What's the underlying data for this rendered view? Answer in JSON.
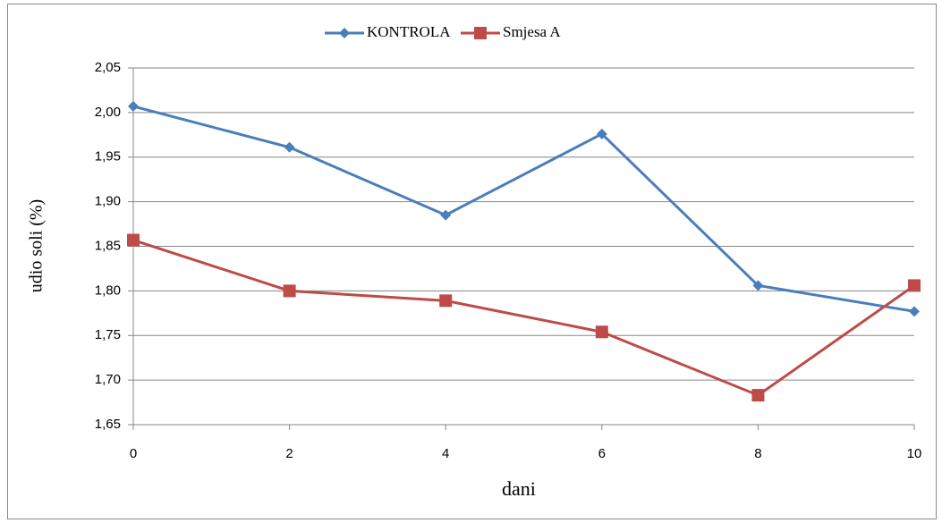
{
  "chart_data": {
    "type": "line",
    "xlabel": "dani",
    "ylabel": "udio soli (%)",
    "x": [
      0,
      2,
      4,
      6,
      8,
      10
    ],
    "series": [
      {
        "name": "KONTROLA",
        "color": "#4a7ebb",
        "marker": "diamond",
        "values": [
          2.007,
          1.961,
          1.885,
          1.976,
          1.806,
          1.777
        ]
      },
      {
        "name": "Smjesa A",
        "color": "#be4b48",
        "marker": "square",
        "values": [
          1.857,
          1.8,
          1.789,
          1.754,
          1.683,
          1.806
        ]
      }
    ],
    "xlim": [
      0,
      10
    ],
    "xticks": [
      0,
      2,
      4,
      6,
      8,
      10
    ],
    "ylim": [
      1.65,
      2.05
    ],
    "yticks": [
      {
        "value": 1.65,
        "label": "1,65"
      },
      {
        "value": 1.7,
        "label": "1,70"
      },
      {
        "value": 1.75,
        "label": "1,75"
      },
      {
        "value": 1.8,
        "label": "1,80"
      },
      {
        "value": 1.85,
        "label": "1,85"
      },
      {
        "value": 1.9,
        "label": "1,90"
      },
      {
        "value": 1.95,
        "label": "1,95"
      },
      {
        "value": 2.0,
        "label": "2,00"
      },
      {
        "value": 2.05,
        "label": "2,05"
      }
    ],
    "grid": true,
    "legend": "top"
  }
}
